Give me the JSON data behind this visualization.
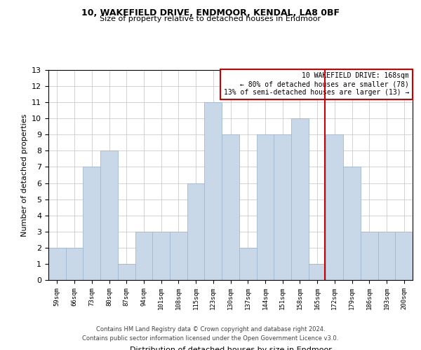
{
  "title1": "10, WAKEFIELD DRIVE, ENDMOOR, KENDAL, LA8 0BF",
  "title2": "Size of property relative to detached houses in Endmoor",
  "xlabel": "Distribution of detached houses by size in Endmoor",
  "ylabel": "Number of detached properties",
  "bin_labels": [
    "59sqm",
    "66sqm",
    "73sqm",
    "80sqm",
    "87sqm",
    "94sqm",
    "101sqm",
    "108sqm",
    "115sqm",
    "123sqm",
    "130sqm",
    "137sqm",
    "144sqm",
    "151sqm",
    "158sqm",
    "165sqm",
    "172sqm",
    "179sqm",
    "186sqm",
    "193sqm",
    "200sqm"
  ],
  "bar_heights": [
    2,
    2,
    7,
    8,
    1,
    3,
    3,
    3,
    6,
    11,
    9,
    2,
    9,
    9,
    10,
    1,
    9,
    7,
    3,
    3,
    3
  ],
  "bar_color": "#c8d8e8",
  "bar_edge_color": "#a0b8d0",
  "vline_x": 15.43,
  "vline_color": "#cc0000",
  "annotation_text": "10 WAKEFIELD DRIVE: 168sqm\n← 80% of detached houses are smaller (78)\n13% of semi-detached houses are larger (13) →",
  "annotation_box_color": "#cc0000",
  "ylim": [
    0,
    13
  ],
  "yticks": [
    0,
    1,
    2,
    3,
    4,
    5,
    6,
    7,
    8,
    9,
    10,
    11,
    12,
    13
  ],
  "footer1": "Contains HM Land Registry data © Crown copyright and database right 2024.",
  "footer2": "Contains public sector information licensed under the Open Government Licence v3.0.",
  "bg_color": "#ffffff",
  "grid_color": "#cccccc"
}
